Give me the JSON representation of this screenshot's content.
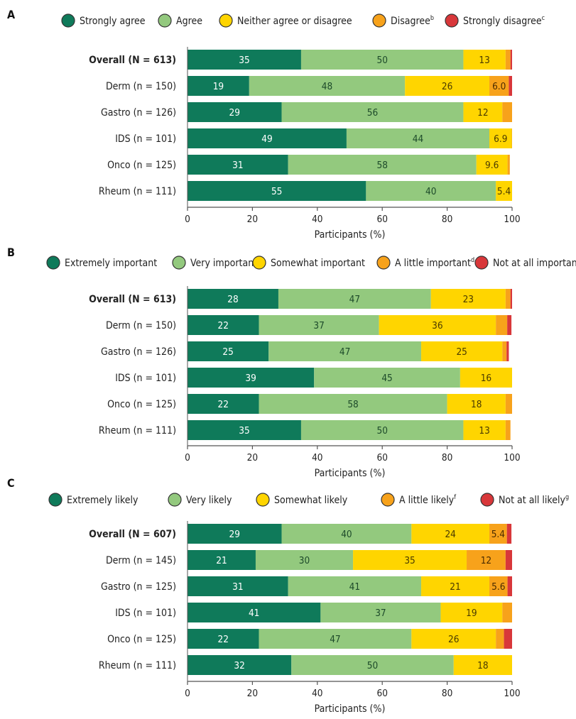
{
  "colors": {
    "strongest": "#0f7a5a",
    "strong": "#93c97e",
    "middle": "#ffd500",
    "weak": "#f7a21b",
    "weakest": "#d8373a",
    "axis": "#555555"
  },
  "chart_data": [
    {
      "panel_letter": "A",
      "type": "bar",
      "orientation": "horizontal",
      "stacked": true,
      "xlabel": "Participants (%)",
      "xlim": [
        0,
        100
      ],
      "x_ticks": [
        0,
        20,
        40,
        60,
        80,
        100
      ],
      "categories": [
        "Overall (N = 613)",
        "Derm (n = 150)",
        "Gastro (n = 126)",
        "IDS (n = 101)",
        "Onco (n = 125)",
        "Rheum (n = 111)"
      ],
      "bold_category": "Overall (N = 613)",
      "legend": {
        "position": "top"
      },
      "series": [
        {
          "name": "Strongly agree",
          "sup": "",
          "color": "#0f7a5a",
          "labelColor": "#ffffff",
          "values": [
            35,
            19,
            29,
            49,
            31,
            55
          ],
          "labels": [
            "35",
            "19",
            "29",
            "49",
            "31",
            "55"
          ]
        },
        {
          "name": "Agree",
          "sup": "",
          "color": "#93c97e",
          "labelColor": "#1d4a2a",
          "values": [
            50,
            48,
            56,
            44,
            58,
            40
          ],
          "labels": [
            "50",
            "48",
            "56",
            "44",
            "58",
            "40"
          ]
        },
        {
          "name": "Neither agree or disagree",
          "sup": "",
          "color": "#ffd500",
          "labelColor": "#4a3b00",
          "values": [
            13,
            26,
            12,
            6.9,
            9.6,
            5.4
          ],
          "labels": [
            "13",
            "26",
            "12",
            "6.9",
            "9.6",
            "5.4"
          ]
        },
        {
          "name": "Disagree",
          "sup": "b",
          "color": "#f7a21b",
          "labelColor": "#4a2b00",
          "values": [
            1.5,
            6.0,
            3.0,
            0.5,
            0.7,
            0.3
          ],
          "labels": [
            "",
            "6.0",
            "",
            "",
            "",
            ""
          ]
        },
        {
          "name": "Strongly disagree",
          "sup": "c",
          "color": "#d8373a",
          "labelColor": "#ffffff",
          "values": [
            0.5,
            1.0,
            0,
            0,
            0,
            0
          ],
          "labels": [
            "",
            "",
            "",
            "",
            "",
            ""
          ]
        }
      ]
    },
    {
      "panel_letter": "B",
      "type": "bar",
      "orientation": "horizontal",
      "stacked": true,
      "xlabel": "Participants (%)",
      "xlim": [
        0,
        100
      ],
      "x_ticks": [
        0,
        20,
        40,
        60,
        80,
        100
      ],
      "categories": [
        "Overall (N = 613)",
        "Derm (n = 150)",
        "Gastro (n = 126)",
        "IDS (n = 101)",
        "Onco (n = 125)",
        "Rheum (n = 111)"
      ],
      "bold_category": "Overall (N = 613)",
      "legend": {
        "position": "top"
      },
      "series": [
        {
          "name": "Extremely important",
          "sup": "",
          "color": "#0f7a5a",
          "labelColor": "#ffffff",
          "values": [
            28,
            22,
            25,
            39,
            22,
            35
          ],
          "labels": [
            "28",
            "22",
            "25",
            "39",
            "22",
            "35"
          ]
        },
        {
          "name": "Very important",
          "sup": "",
          "color": "#93c97e",
          "labelColor": "#1d4a2a",
          "values": [
            47,
            37,
            47,
            45,
            58,
            50
          ],
          "labels": [
            "47",
            "37",
            "47",
            "45",
            "58",
            "50"
          ]
        },
        {
          "name": "Somewhat important",
          "sup": "",
          "color": "#ffd500",
          "labelColor": "#4a3b00",
          "values": [
            23,
            36,
            25,
            16,
            18,
            13
          ],
          "labels": [
            "23",
            "36",
            "25",
            "16",
            "18",
            "13"
          ]
        },
        {
          "name": "A little important",
          "sup": "d",
          "color": "#f7a21b",
          "labelColor": "#4a2b00",
          "values": [
            1.5,
            3.5,
            1.3,
            0.7,
            3.0,
            1.5
          ],
          "labels": [
            "",
            "",
            "",
            "",
            "",
            ""
          ]
        },
        {
          "name": "Not at all important",
          "sup": "e",
          "color": "#d8373a",
          "labelColor": "#ffffff",
          "values": [
            0.5,
            1.3,
            0.7,
            0,
            0,
            0
          ],
          "labels": [
            "",
            "",
            "",
            "",
            "",
            ""
          ]
        }
      ]
    },
    {
      "panel_letter": "C",
      "type": "bar",
      "orientation": "horizontal",
      "stacked": true,
      "xlabel": "Participants (%)",
      "xlim": [
        0,
        100
      ],
      "x_ticks": [
        0,
        20,
        40,
        60,
        80,
        100
      ],
      "categories": [
        "Overall (N = 607)",
        "Derm (n = 145)",
        "Gastro (n = 125)",
        "IDS (n = 101)",
        "Onco (n = 125)",
        "Rheum (n = 111)"
      ],
      "bold_category": "Overall (N = 607)",
      "legend": {
        "position": "top"
      },
      "series": [
        {
          "name": "Extremely likely",
          "sup": "",
          "color": "#0f7a5a",
          "labelColor": "#ffffff",
          "values": [
            29,
            21,
            31,
            41,
            22,
            32
          ],
          "labels": [
            "29",
            "21",
            "31",
            "41",
            "22",
            "32"
          ]
        },
        {
          "name": "Very likely",
          "sup": "",
          "color": "#93c97e",
          "labelColor": "#1d4a2a",
          "values": [
            40,
            30,
            41,
            37,
            47,
            50
          ],
          "labels": [
            "40",
            "30",
            "41",
            "37",
            "47",
            "50"
          ]
        },
        {
          "name": "Somewhat likely",
          "sup": "",
          "color": "#ffd500",
          "labelColor": "#4a3b00",
          "values": [
            24,
            35,
            21,
            19,
            26,
            18
          ],
          "labels": [
            "24",
            "35",
            "21",
            "19",
            "26",
            "18"
          ]
        },
        {
          "name": "A little likely",
          "sup": "f",
          "color": "#f7a21b",
          "labelColor": "#4a2b00",
          "values": [
            5.4,
            12,
            5.6,
            3.5,
            2.5,
            0.5
          ],
          "labels": [
            "5.4",
            "12",
            "5.6",
            "",
            "",
            ""
          ]
        },
        {
          "name": "Not at all likely",
          "sup": "g",
          "color": "#d8373a",
          "labelColor": "#ffffff",
          "values": [
            1.4,
            2.0,
            1.6,
            0,
            2.5,
            0
          ],
          "labels": [
            "",
            "",
            "",
            "",
            "",
            ""
          ]
        }
      ]
    }
  ]
}
